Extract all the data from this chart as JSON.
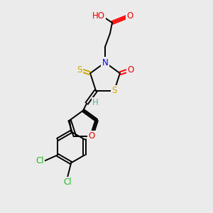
{
  "bg_color": "#ebebeb",
  "atom_colors": {
    "C": "#000000",
    "H": "#5aacac",
    "N": "#0000ee",
    "O": "#ee0000",
    "S": "#ccaa00",
    "Cl": "#22bb22"
  },
  "bond_color": "#000000",
  "bond_lw": 1.4,
  "figsize": [
    3.0,
    3.0
  ],
  "dpi": 100
}
